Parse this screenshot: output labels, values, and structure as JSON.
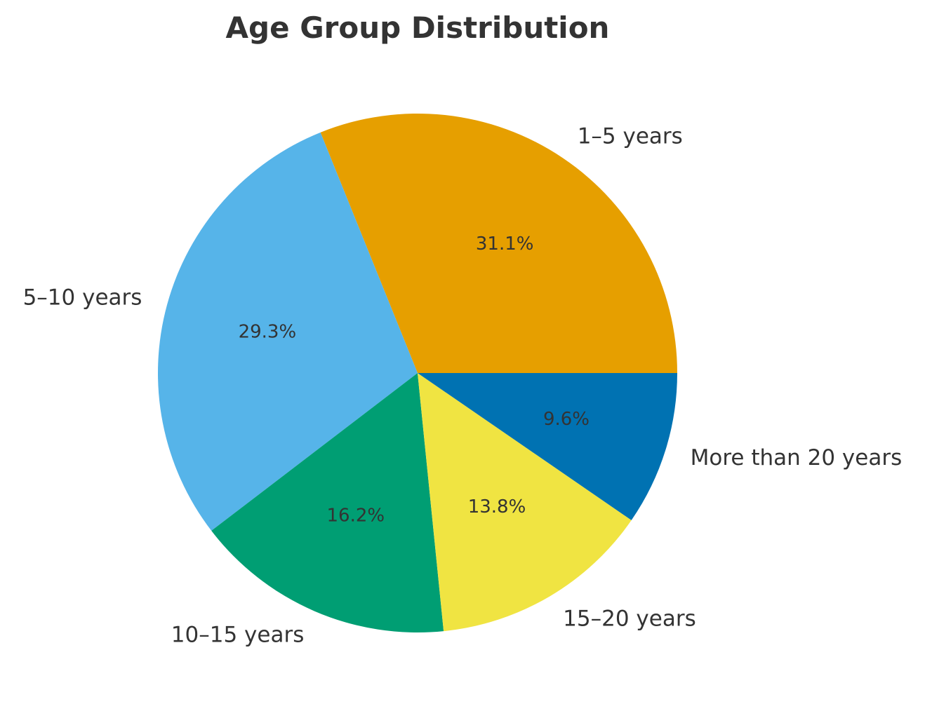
{
  "chart_data": {
    "type": "pie",
    "title": "Age Group Distribution",
    "start_angle_deg": 0,
    "direction": "counterclockwise",
    "slices": [
      {
        "label": "1–5 years",
        "value": 31.1,
        "pct_label": "31.1%",
        "color": "#E69F00"
      },
      {
        "label": "5–10 years",
        "value": 29.3,
        "pct_label": "29.3%",
        "color": "#56B4E9"
      },
      {
        "label": "10–15 years",
        "value": 16.2,
        "pct_label": "16.2%",
        "color": "#009E73"
      },
      {
        "label": "15–20 years",
        "value": 13.8,
        "pct_label": "13.8%",
        "color": "#F0E442"
      },
      {
        "label": "More than 20 years",
        "value": 9.6,
        "pct_label": "9.6%",
        "color": "#0072B2"
      }
    ]
  }
}
